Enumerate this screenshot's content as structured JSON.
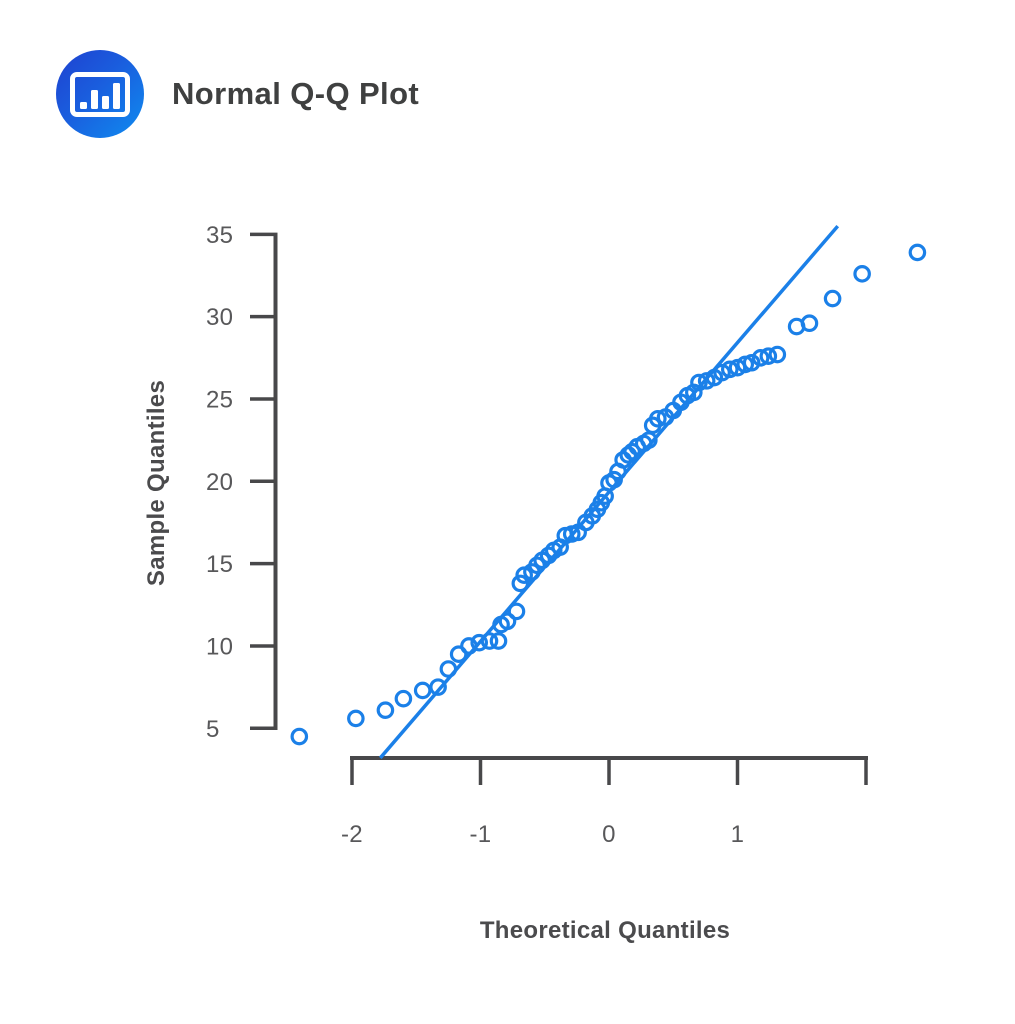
{
  "header": {
    "title": "Normal Q-Q Plot",
    "icon": "bar-chart-icon"
  },
  "chart_data": {
    "type": "scatter",
    "title": "Normal Q-Q Plot",
    "xlabel": "Theoretical Quantiles",
    "ylabel": "Sample Quantiles",
    "axis_range_x": [
      -2,
      2
    ],
    "axis_range_y": [
      5,
      35
    ],
    "grid": false,
    "legend": null,
    "x_ticks": [
      {
        "value": -2,
        "label": "-2"
      },
      {
        "value": -1,
        "label": "-1"
      },
      {
        "value": 0,
        "label": "0"
      },
      {
        "value": 1,
        "label": "1"
      },
      {
        "value": 2,
        "label": ""
      }
    ],
    "y_ticks": [
      {
        "value": 5,
        "label": "5"
      },
      {
        "value": 10,
        "label": "10"
      },
      {
        "value": 15,
        "label": "15"
      },
      {
        "value": 20,
        "label": "20"
      },
      {
        "value": 25,
        "label": "25"
      },
      {
        "value": 30,
        "label": "30"
      },
      {
        "value": 35,
        "label": "35"
      }
    ],
    "reference_line": {
      "x1": -1.78,
      "y1": 3.2,
      "x2": 1.78,
      "y2": 35.5
    },
    "point_color": "#1b80e8",
    "line_color": "#1b80e8",
    "axis_color": "#48484a",
    "points": [
      [
        -2.41,
        4.5
      ],
      [
        -1.97,
        5.6
      ],
      [
        -1.74,
        6.1
      ],
      [
        -1.6,
        6.8
      ],
      [
        -1.45,
        7.3
      ],
      [
        -1.33,
        7.5
      ],
      [
        -1.25,
        8.6
      ],
      [
        -1.17,
        9.5
      ],
      [
        -1.09,
        10.0
      ],
      [
        -1.01,
        10.2
      ],
      [
        -0.93,
        10.3
      ],
      [
        -0.86,
        10.3
      ],
      [
        -0.84,
        11.3
      ],
      [
        -0.79,
        11.5
      ],
      [
        -0.72,
        12.1
      ],
      [
        -0.69,
        13.8
      ],
      [
        -0.66,
        14.3
      ],
      [
        -0.6,
        14.5
      ],
      [
        -0.56,
        14.9
      ],
      [
        -0.52,
        15.2
      ],
      [
        -0.47,
        15.5
      ],
      [
        -0.43,
        15.8
      ],
      [
        -0.38,
        16.0
      ],
      [
        -0.34,
        16.7
      ],
      [
        -0.29,
        16.8
      ],
      [
        -0.24,
        16.9
      ],
      [
        -0.18,
        17.5
      ],
      [
        -0.13,
        17.9
      ],
      [
        -0.09,
        18.3
      ],
      [
        -0.06,
        18.7
      ],
      [
        -0.03,
        19.1
      ],
      [
        0.0,
        19.9
      ],
      [
        0.04,
        20.1
      ],
      [
        0.07,
        20.6
      ],
      [
        0.11,
        21.3
      ],
      [
        0.15,
        21.6
      ],
      [
        0.18,
        21.8
      ],
      [
        0.22,
        22.1
      ],
      [
        0.27,
        22.3
      ],
      [
        0.31,
        22.5
      ],
      [
        0.34,
        23.4
      ],
      [
        0.38,
        23.8
      ],
      [
        0.44,
        23.9
      ],
      [
        0.5,
        24.3
      ],
      [
        0.56,
        24.8
      ],
      [
        0.61,
        25.2
      ],
      [
        0.66,
        25.4
      ],
      [
        0.7,
        26.0
      ],
      [
        0.76,
        26.1
      ],
      [
        0.82,
        26.3
      ],
      [
        0.88,
        26.6
      ],
      [
        0.94,
        26.8
      ],
      [
        1.0,
        26.9
      ],
      [
        1.06,
        27.1
      ],
      [
        1.11,
        27.2
      ],
      [
        1.18,
        27.5
      ],
      [
        1.24,
        27.6
      ],
      [
        1.31,
        27.7
      ],
      [
        1.46,
        29.4
      ],
      [
        1.56,
        29.6
      ],
      [
        1.74,
        31.1
      ],
      [
        1.97,
        32.6
      ],
      [
        2.4,
        33.9
      ]
    ]
  }
}
